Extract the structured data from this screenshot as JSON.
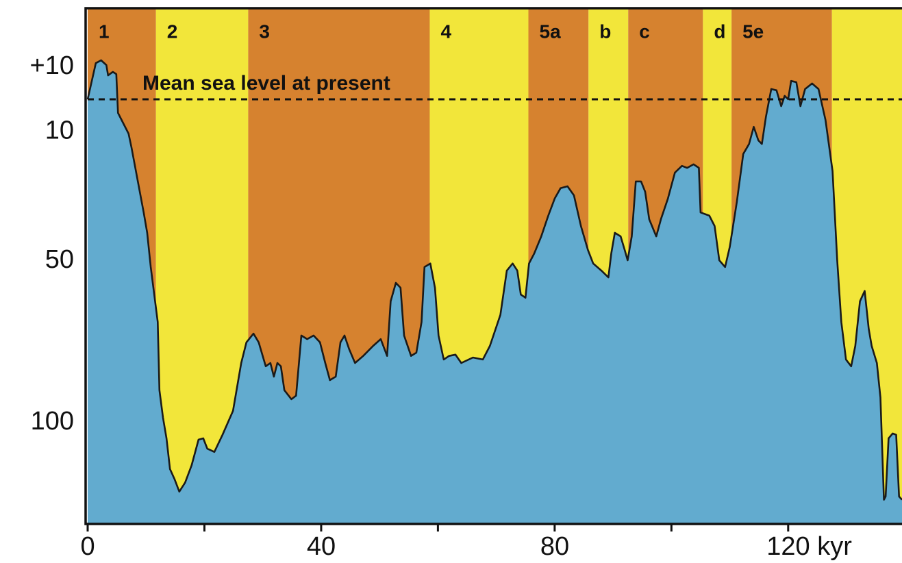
{
  "chart_data": {
    "type": "area",
    "stages": {
      "labels": [
        "1",
        "2",
        "3",
        "4",
        "5a",
        "b",
        "c",
        "d",
        "5e",
        null
      ],
      "bounds": [
        0,
        11.7,
        27.5,
        58.6,
        75.5,
        85.8,
        92.6,
        105.4,
        110.3,
        127.5,
        139.5
      ],
      "colors": [
        "#d6822f",
        "#f2e63a",
        "#d6822f",
        "#f2e63a",
        "#d6822f",
        "#f2e63a",
        "#d6822f",
        "#f2e63a",
        "#d6822f",
        "#f2e63a"
      ]
    },
    "reference_line": {
      "value": 0,
      "label": "Mean sea level at present"
    },
    "color": "#62abcf",
    "x": [
      0,
      1.4,
      2.3,
      3.2,
      3.5,
      4.3,
      4.9,
      5.2,
      6.1,
      7.0,
      7.5,
      8.5,
      9.6,
      10.2,
      10.8,
      11.4,
      12.0,
      12.3,
      12.9,
      13.5,
      14.1,
      14.9,
      15.7,
      16.7,
      17.8,
      19.0,
      19.8,
      20.5,
      21.7,
      23.1,
      24.9,
      26.3,
      27.2,
      28.4,
      29.3,
      30.5,
      31.3,
      31.9,
      32.5,
      33.1,
      33.7,
      34.9,
      35.7,
      36.6,
      37.6,
      38.7,
      39.8,
      40.7,
      41.5,
      42.5,
      43.3,
      44.0,
      44.8,
      45.8,
      47.2,
      48.9,
      50.2,
      51.3,
      51.9,
      52.8,
      53.6,
      54.2,
      55.4,
      56.3,
      57.2,
      57.7,
      58.7,
      59.5,
      60.1,
      61.0,
      61.9,
      63.0,
      64.0,
      66.0,
      67.7,
      68.9,
      70.7,
      71.8,
      72.8,
      73.6,
      74.2,
      75.0,
      75.6,
      76.5,
      77.7,
      78.9,
      80.0,
      81.0,
      82.2,
      83.3,
      84.5,
      85.7,
      86.6,
      88.0,
      89.2,
      89.7,
      90.3,
      91.3,
      92.0,
      92.5,
      93.2,
      93.9,
      94.8,
      95.5,
      96.2,
      97.4,
      98.2,
      99.4,
      100.6,
      101.8,
      102.7,
      103.8,
      104.7,
      105.0,
      106.5,
      107.4,
      108.2,
      109.2,
      110.0,
      111.2,
      112.3,
      113.3,
      114.1,
      114.9,
      115.5,
      116.2,
      117.1,
      118.0,
      118.8,
      119.4,
      120.0,
      120.5,
      121.4,
      122.1,
      122.9,
      124.1,
      125.2,
      126.4,
      127.6,
      128.4,
      129.1,
      129.9,
      130.8,
      131.5,
      132.3,
      133.1,
      133.8,
      134.3,
      135.2,
      135.8,
      136.4,
      136.7,
      137.2,
      137.9,
      138.5,
      139.0,
      139.5
    ],
    "values": [
      0,
      11.2,
      12.1,
      10.6,
      7.4,
      8.5,
      7.8,
      -4.2,
      -7.4,
      -10.6,
      -14.8,
      -24.4,
      -35.0,
      -41.3,
      -51.9,
      -60.4,
      -68.9,
      -90.0,
      -98.5,
      -104.9,
      -114.4,
      -117.6,
      -121.4,
      -118.6,
      -113.3,
      -105.3,
      -104.9,
      -108.1,
      -109.1,
      -103.8,
      -96.4,
      -81.6,
      -75.2,
      -72.5,
      -75.2,
      -82.6,
      -81.6,
      -85.8,
      -81.6,
      -82.6,
      -90.0,
      -92.8,
      -91.7,
      -73.1,
      -74.2,
      -73.1,
      -75.2,
      -81.6,
      -86.9,
      -85.8,
      -75.2,
      -73.1,
      -77.3,
      -81.6,
      -79.4,
      -76.3,
      -74.2,
      -79.4,
      -62.5,
      -56.8,
      -58.3,
      -73.1,
      -79.4,
      -78.4,
      -68.9,
      -51.9,
      -50.8,
      -58.3,
      -73.1,
      -80.5,
      -79.4,
      -79.0,
      -81.6,
      -79.9,
      -80.5,
      -76.3,
      -66.7,
      -53.0,
      -50.8,
      -53.0,
      -60.4,
      -61.4,
      -50.8,
      -47.7,
      -42.4,
      -36.0,
      -30.7,
      -27.5,
      -26.9,
      -29.7,
      -39.2,
      -46.6,
      -50.8,
      -53.0,
      -55.1,
      -47.7,
      -41.3,
      -42.4,
      -46.6,
      -49.8,
      -42.4,
      -25.4,
      -25.4,
      -28.6,
      -37.1,
      -42.4,
      -37.1,
      -30.7,
      -22.7,
      -20.6,
      -21.2,
      -20.1,
      -21.2,
      -35.0,
      -36.0,
      -39.2,
      -49.8,
      -51.9,
      -45.6,
      -31.8,
      -16.9,
      -13.8,
      -8.5,
      -12.7,
      -13.8,
      -5.3,
      3.2,
      2.8,
      -2.1,
      1.1,
      0,
      5.7,
      5.3,
      -2.1,
      3.2,
      4.9,
      3.2,
      -6.4,
      -22.2,
      -49.8,
      -68.9,
      -80.5,
      -82.6,
      -76.3,
      -62.5,
      -59.3,
      -71.0,
      -76.3,
      -81.6,
      -92.2,
      -123.9,
      -122.9,
      -104.9,
      -103.4,
      -103.8,
      -122.9,
      -123.9
    ],
    "xlim": [
      0,
      139.5
    ],
    "ylim": [
      -131.4,
      28.2
    ],
    "xticks": [
      0,
      {
        "value": 20,
        "label": null
      },
      40,
      {
        "value": 60,
        "label": null
      },
      80,
      {
        "value": 100,
        "label": null
      },
      {
        "value": 120,
        "label": "120 kyr"
      }
    ],
    "yticks": [
      {
        "value": 10,
        "label": "+10"
      },
      {
        "value": -10,
        "label": "10"
      },
      {
        "value": -50,
        "label": "50"
      },
      {
        "value": -100,
        "label": "100"
      }
    ]
  }
}
